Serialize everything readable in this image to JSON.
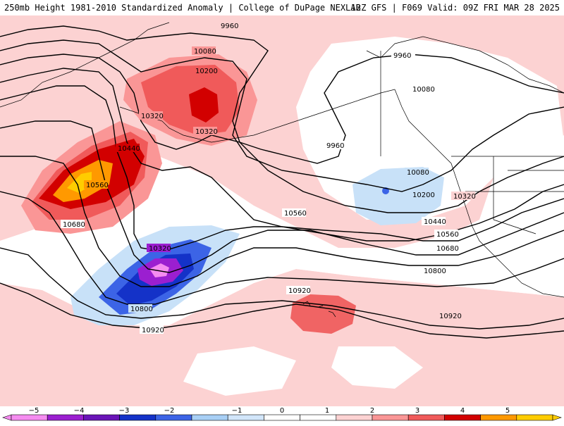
{
  "header": {
    "title": "250mb Height 1981-2010 Standardized Anomaly | College of DuPage NEXLAB",
    "run_info": "12Z GFS | F069 Valid: 09Z FRI MAR 28 2025"
  },
  "map": {
    "contour_labels": [
      "9960",
      "9960",
      "9960",
      "10080",
      "10080",
      "10080",
      "10200",
      "10200",
      "10320",
      "10320",
      "10320",
      "10320",
      "10440",
      "10440",
      "10560",
      "10560",
      "10560",
      "10680",
      "10680",
      "10800",
      "10800",
      "10920",
      "10920",
      "10920"
    ]
  },
  "colorbar": {
    "tick_labels": [
      "−5",
      "−4",
      "−3",
      "−2",
      "−1",
      "0",
      "1",
      "2",
      "3",
      "4",
      "5"
    ],
    "colors": [
      "#f58cf0",
      "#9b1fd0",
      "#6a14b8",
      "#1432c8",
      "#3c64e6",
      "#a8cff5",
      "#d2e6fa",
      "#ffffff",
      "#ffffff",
      "#fcd2d2",
      "#fa9696",
      "#f05a5a",
      "#d20000",
      "#ff9900",
      "#ffcc00"
    ]
  },
  "colors": {
    "strong_negative": "#9b1fd0",
    "negative": "#1e46d2",
    "weak_negative": "#c8e1f8",
    "weak_positive": "#fcd2d2",
    "positive": "#f06464",
    "strong_positive": "#c80000",
    "extreme_positive": "#ff9900"
  }
}
